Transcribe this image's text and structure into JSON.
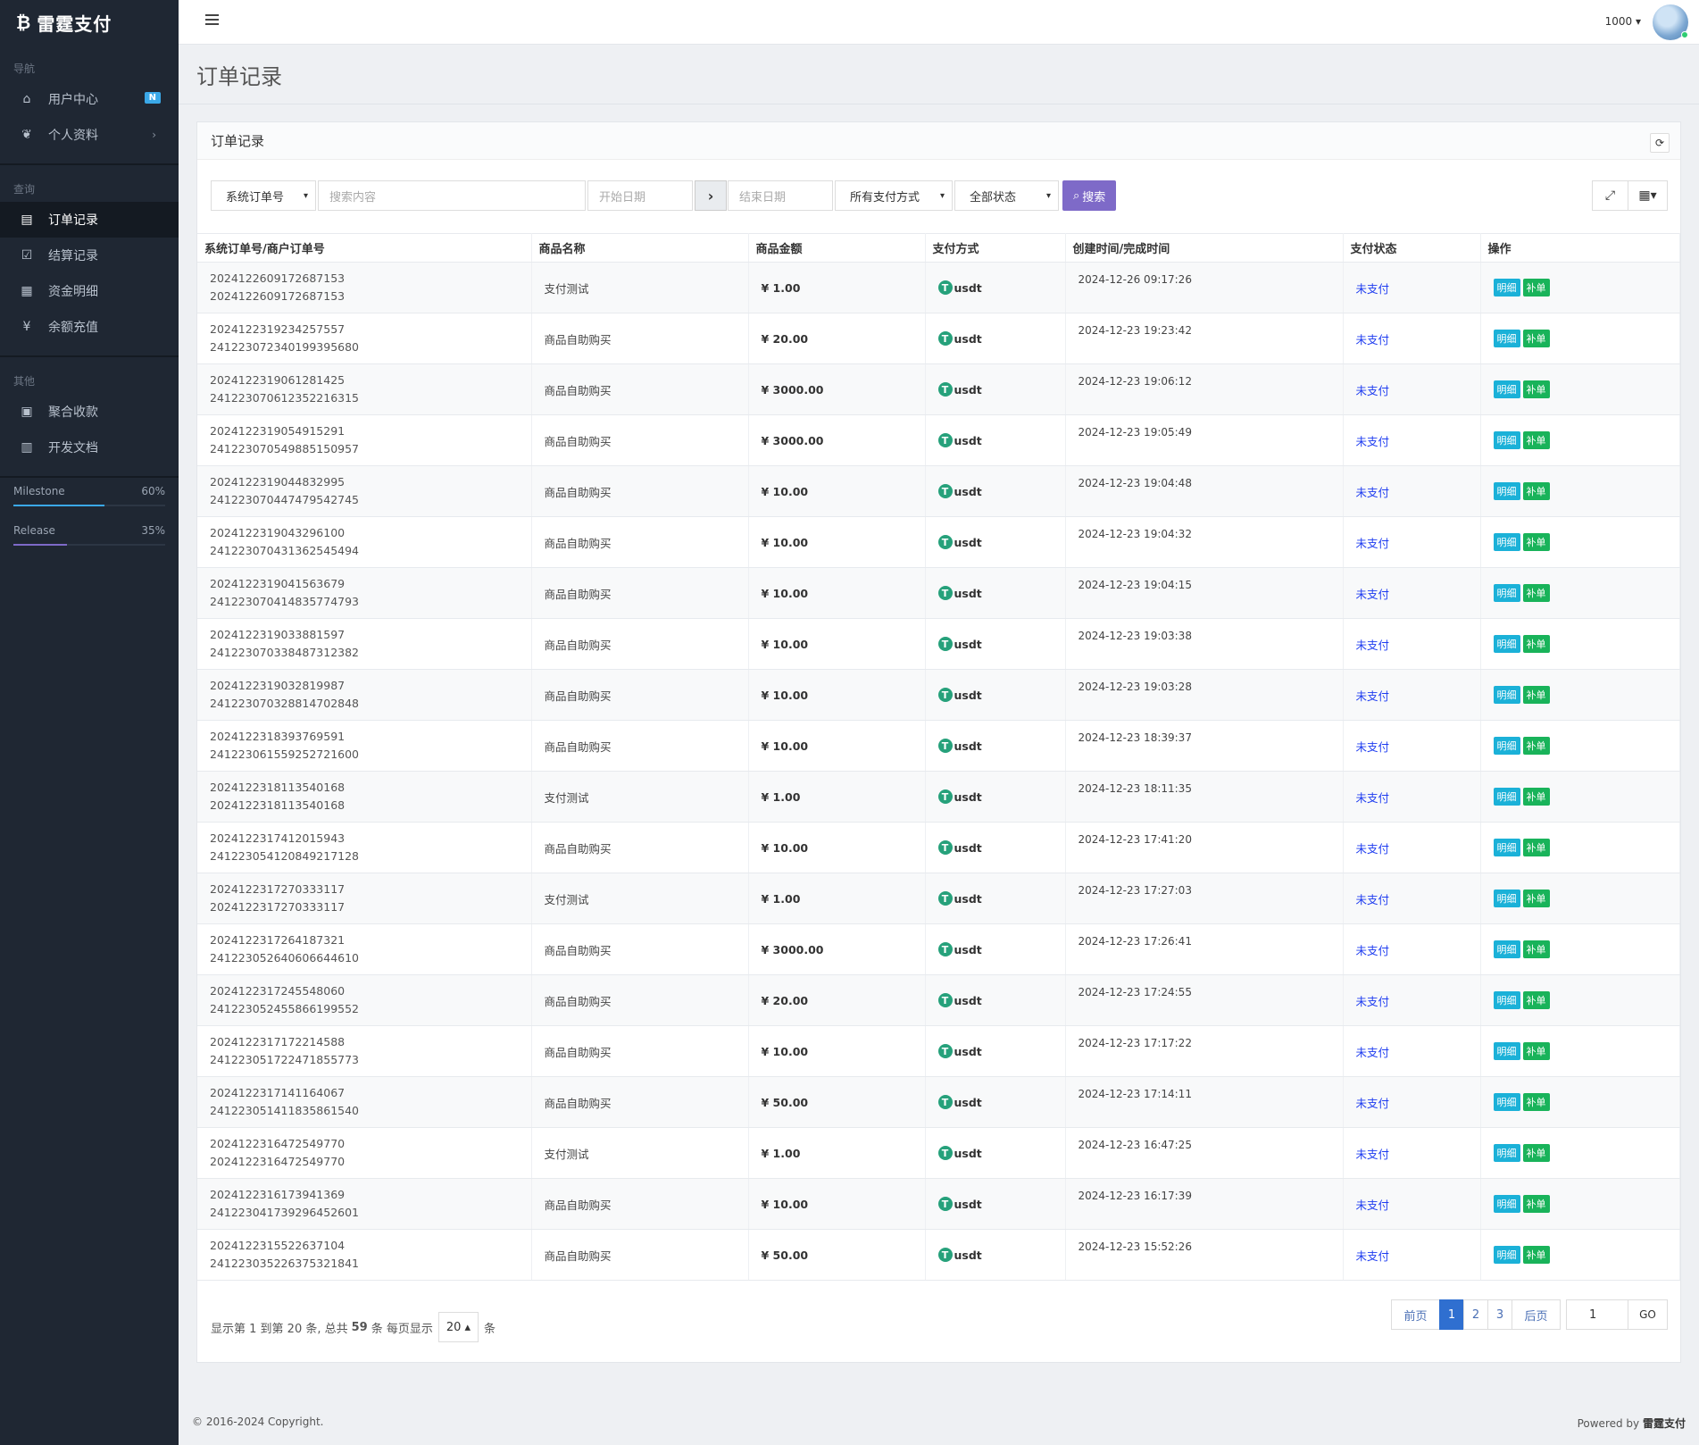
{
  "app": {
    "logo_icon": "bitcoin-icon",
    "name": "雷霆支付"
  },
  "sidebar": {
    "sections": [
      {
        "title": "导航",
        "items": [
          {
            "label": "用户中心",
            "icon": "home-icon",
            "badge": "N"
          },
          {
            "label": "个人资料",
            "icon": "leaf-icon",
            "chevron": "›"
          }
        ]
      },
      {
        "title": "查询",
        "items": [
          {
            "label": "订单记录",
            "icon": "list-icon",
            "active": true
          },
          {
            "label": "结算记录",
            "icon": "check-square-icon"
          },
          {
            "label": "资金明细",
            "icon": "calendar-icon"
          },
          {
            "label": "余额充值",
            "icon": "yen-icon"
          }
        ]
      },
      {
        "title": "其他",
        "items": [
          {
            "label": "聚合收款",
            "icon": "qrcode-icon"
          },
          {
            "label": "开发文档",
            "icon": "book-icon"
          }
        ]
      }
    ],
    "progress": [
      {
        "label": "Milestone",
        "value": "60%",
        "fraction": 0.6,
        "color": "#3aa8e8"
      },
      {
        "label": "Release",
        "value": "35%",
        "fraction": 0.35,
        "color": "#7e6ac8"
      }
    ]
  },
  "topbar": {
    "user_number": "1000 ▾"
  },
  "page": {
    "title": "订单记录"
  },
  "panel": {
    "title": "订单记录",
    "refresh_icon": "⟳",
    "toolbar": {
      "order_type": "系统订单号",
      "search_placeholder": "搜索内容",
      "start_date_placeholder": "开始日期",
      "end_date_placeholder": "结束日期",
      "arrow": "›",
      "pay_method": "所有支付方式",
      "status": "全部状态",
      "search_button": "搜索",
      "fullscreen_icon": "⤢",
      "columns_icon": "▦▾"
    }
  },
  "table": {
    "headers": [
      "系统订单号/商户订单号",
      "商品名称",
      "商品金额",
      "支付方式",
      "创建时间/完成时间",
      "支付状态",
      "操作"
    ],
    "pay_icon": "T",
    "detail_label": "明细",
    "fix_label": "补单",
    "rows": [
      {
        "sys": "2024122609172687153",
        "mch": "2024122609172687153",
        "name": "支付测试",
        "amount": "¥ 1.00",
        "pay": "usdt",
        "time": "2024-12-26 09:17:26",
        "status": "未支付"
      },
      {
        "sys": "2024122319234257557",
        "mch": "241223072340199395680",
        "name": "商品自助购买",
        "amount": "¥ 20.00",
        "pay": "usdt",
        "time": "2024-12-23 19:23:42",
        "status": "未支付"
      },
      {
        "sys": "2024122319061281425",
        "mch": "241223070612352216315",
        "name": "商品自助购买",
        "amount": "¥ 3000.00",
        "pay": "usdt",
        "time": "2024-12-23 19:06:12",
        "status": "未支付"
      },
      {
        "sys": "2024122319054915291",
        "mch": "241223070549885150957",
        "name": "商品自助购买",
        "amount": "¥ 3000.00",
        "pay": "usdt",
        "time": "2024-12-23 19:05:49",
        "status": "未支付"
      },
      {
        "sys": "2024122319044832995",
        "mch": "241223070447479542745",
        "name": "商品自助购买",
        "amount": "¥ 10.00",
        "pay": "usdt",
        "time": "2024-12-23 19:04:48",
        "status": "未支付"
      },
      {
        "sys": "2024122319043296100",
        "mch": "241223070431362545494",
        "name": "商品自助购买",
        "amount": "¥ 10.00",
        "pay": "usdt",
        "time": "2024-12-23 19:04:32",
        "status": "未支付"
      },
      {
        "sys": "2024122319041563679",
        "mch": "241223070414835774793",
        "name": "商品自助购买",
        "amount": "¥ 10.00",
        "pay": "usdt",
        "time": "2024-12-23 19:04:15",
        "status": "未支付"
      },
      {
        "sys": "2024122319033881597",
        "mch": "241223070338487312382",
        "name": "商品自助购买",
        "amount": "¥ 10.00",
        "pay": "usdt",
        "time": "2024-12-23 19:03:38",
        "status": "未支付"
      },
      {
        "sys": "2024122319032819987",
        "mch": "241223070328814702848",
        "name": "商品自助购买",
        "amount": "¥ 10.00",
        "pay": "usdt",
        "time": "2024-12-23 19:03:28",
        "status": "未支付"
      },
      {
        "sys": "2024122318393769591",
        "mch": "241223061559252721600",
        "name": "商品自助购买",
        "amount": "¥ 10.00",
        "pay": "usdt",
        "time": "2024-12-23 18:39:37",
        "status": "未支付"
      },
      {
        "sys": "2024122318113540168",
        "mch": "2024122318113540168",
        "name": "支付测试",
        "amount": "¥ 1.00",
        "pay": "usdt",
        "time": "2024-12-23 18:11:35",
        "status": "未支付"
      },
      {
        "sys": "2024122317412015943",
        "mch": "241223054120849217128",
        "name": "商品自助购买",
        "amount": "¥ 10.00",
        "pay": "usdt",
        "time": "2024-12-23 17:41:20",
        "status": "未支付"
      },
      {
        "sys": "2024122317270333117",
        "mch": "2024122317270333117",
        "name": "支付测试",
        "amount": "¥ 1.00",
        "pay": "usdt",
        "time": "2024-12-23 17:27:03",
        "status": "未支付"
      },
      {
        "sys": "2024122317264187321",
        "mch": "241223052640606644610",
        "name": "商品自助购买",
        "amount": "¥ 3000.00",
        "pay": "usdt",
        "time": "2024-12-23 17:26:41",
        "status": "未支付"
      },
      {
        "sys": "2024122317245548060",
        "mch": "241223052455866199552",
        "name": "商品自助购买",
        "amount": "¥ 20.00",
        "pay": "usdt",
        "time": "2024-12-23 17:24:55",
        "status": "未支付"
      },
      {
        "sys": "2024122317172214588",
        "mch": "241223051722471855773",
        "name": "商品自助购买",
        "amount": "¥ 10.00",
        "pay": "usdt",
        "time": "2024-12-23 17:17:22",
        "status": "未支付"
      },
      {
        "sys": "2024122317141164067",
        "mch": "241223051411835861540",
        "name": "商品自助购买",
        "amount": "¥ 50.00",
        "pay": "usdt",
        "time": "2024-12-23 17:14:11",
        "status": "未支付"
      },
      {
        "sys": "2024122316472549770",
        "mch": "2024122316472549770",
        "name": "支付测试",
        "amount": "¥ 1.00",
        "pay": "usdt",
        "time": "2024-12-23 16:47:25",
        "status": "未支付"
      },
      {
        "sys": "2024122316173941369",
        "mch": "241223041739296452601",
        "name": "商品自助购买",
        "amount": "¥ 10.00",
        "pay": "usdt",
        "time": "2024-12-23 16:17:39",
        "status": "未支付"
      },
      {
        "sys": "2024122315522637104",
        "mch": "241223035226375321841",
        "name": "商品自助购买",
        "amount": "¥ 50.00",
        "pay": "usdt",
        "time": "2024-12-23 15:52:26",
        "status": "未支付"
      }
    ]
  },
  "pagination": {
    "info_prefix": "显示第 1 到第 20 条, 总共",
    "total": "59",
    "info_mid": "条  每页显示",
    "page_size": "20 ▴",
    "info_suffix": "条",
    "prev": "前页",
    "pages": [
      "1",
      "2",
      "3"
    ],
    "current": "1",
    "next": "后页",
    "jump_value": "1",
    "go": "GO"
  },
  "footer": {
    "copyright": "© 2016-2024 Copyright.",
    "powered_prefix": "Powered by",
    "powered_brand": "雷霆支付"
  }
}
